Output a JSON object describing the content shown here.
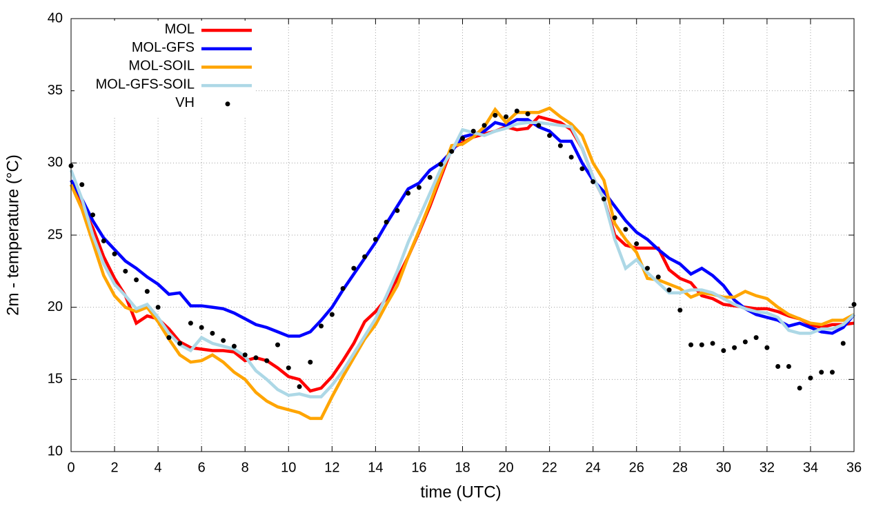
{
  "chart_data": {
    "type": "line",
    "xlabel": "time (UTC)",
    "ylabel": "2m - temperature (°C)",
    "x": [
      0,
      0.5,
      1,
      1.5,
      2,
      2.5,
      3,
      3.5,
      4,
      4.5,
      5,
      5.5,
      6,
      6.5,
      7,
      7.5,
      8,
      8.5,
      9,
      9.5,
      10,
      10.5,
      11,
      11.5,
      12,
      12.5,
      13,
      13.5,
      14,
      14.5,
      15,
      15.5,
      16,
      16.5,
      17,
      17.5,
      18,
      18.5,
      19,
      19.5,
      20,
      20.5,
      21,
      21.5,
      22,
      22.5,
      23,
      23.5,
      24,
      24.5,
      25,
      25.5,
      26,
      26.5,
      27,
      27.5,
      28,
      28.5,
      29,
      29.5,
      30,
      30.5,
      31,
      31.5,
      32,
      32.5,
      33,
      33.5,
      34,
      34.5,
      35,
      35.5,
      36
    ],
    "series": [
      {
        "name": "MOL",
        "color": "#ff0000",
        "values": [
          28.5,
          27,
          25.5,
          23.5,
          22,
          20.8,
          18.9,
          19.4,
          19.2,
          18.5,
          17.6,
          17.2,
          17.1,
          17.0,
          17.0,
          16.9,
          16.3,
          16.5,
          16.3,
          15.8,
          15.2,
          15.0,
          14.2,
          14.4,
          15.2,
          16.3,
          17.5,
          19.0,
          19.7,
          20.6,
          22.0,
          23.5,
          25.2,
          27.0,
          29.0,
          31.0,
          31.4,
          31.8,
          32.0,
          32.2,
          32.5,
          32.3,
          32.4,
          33.2,
          33.0,
          32.8,
          32.3,
          31.0,
          29.0,
          27.5,
          25.0,
          24.3,
          24.1,
          24.1,
          24.1,
          22.6,
          22.0,
          21.7,
          20.8,
          20.6,
          20.2,
          20.1,
          20.0,
          19.9,
          19.9,
          19.7,
          19.4,
          19.2,
          18.8,
          18.6,
          18.8,
          18.8,
          18.9
        ]
      },
      {
        "name": "MOL-GFS",
        "color": "#0000ff",
        "values": [
          28.8,
          27.5,
          26.0,
          24.8,
          24.0,
          23.2,
          22.7,
          22.1,
          21.6,
          20.9,
          21.0,
          20.1,
          20.1,
          20.0,
          19.9,
          19.6,
          19.2,
          18.8,
          18.6,
          18.3,
          18.0,
          18.0,
          18.3,
          19.1,
          20.0,
          21.2,
          22.3,
          23.4,
          24.5,
          25.8,
          27.0,
          28.2,
          28.6,
          29.5,
          30.0,
          30.8,
          31.8,
          32.0,
          32.2,
          32.8,
          32.6,
          33.0,
          33.0,
          32.5,
          32.2,
          31.5,
          31.5,
          30.0,
          28.8,
          28.0,
          27.0,
          26.0,
          25.2,
          24.7,
          24.0,
          23.4,
          23.0,
          22.3,
          22.7,
          22.2,
          21.5,
          20.5,
          19.9,
          19.5,
          19.3,
          19.1,
          18.7,
          18.9,
          18.6,
          18.3,
          18.2,
          18.6,
          19.5
        ]
      },
      {
        "name": "MOL-SOIL",
        "color": "#ffa500",
        "values": [
          28.5,
          26.8,
          24.5,
          22.2,
          20.8,
          20.0,
          19.7,
          20.0,
          19.0,
          17.8,
          16.7,
          16.2,
          16.3,
          16.7,
          16.2,
          15.5,
          15.0,
          14.1,
          13.5,
          13.1,
          12.9,
          12.7,
          12.3,
          12.3,
          13.8,
          15.2,
          16.5,
          17.8,
          18.8,
          20.2,
          21.5,
          23.5,
          25.3,
          27.2,
          29.2,
          31.2,
          31.3,
          31.8,
          32.5,
          33.7,
          32.8,
          33.5,
          33.5,
          33.5,
          33.8,
          33.2,
          32.7,
          31.9,
          30.0,
          28.8,
          25.8,
          24.7,
          23.8,
          22.0,
          21.9,
          21.6,
          21.3,
          20.7,
          21.0,
          20.9,
          20.7,
          20.7,
          21.1,
          20.8,
          20.6,
          20.0,
          19.5,
          19.2,
          18.9,
          18.8,
          19.1,
          19.1,
          19.5
        ]
      },
      {
        "name": "MOL-GFS-SOIL",
        "color": "#add8e6",
        "values": [
          29.5,
          27.5,
          25.0,
          23.0,
          21.6,
          20.8,
          19.9,
          20.2,
          19.3,
          18.2,
          17.4,
          17.0,
          17.9,
          17.5,
          17.3,
          17.1,
          16.6,
          15.6,
          15.0,
          14.3,
          13.9,
          14.0,
          13.8,
          13.8,
          14.6,
          15.6,
          16.8,
          18.0,
          19.2,
          20.8,
          22.5,
          24.5,
          26.2,
          27.9,
          29.6,
          30.8,
          32.3,
          32.1,
          31.9,
          32.2,
          32.4,
          32.7,
          32.8,
          32.8,
          32.7,
          32.6,
          32.5,
          31.0,
          29.0,
          27.5,
          24.7,
          22.7,
          23.3,
          22.4,
          21.7,
          21.0,
          21.0,
          21.2,
          21.2,
          21.0,
          20.6,
          20.2,
          19.9,
          19.7,
          19.6,
          19.3,
          18.4,
          18.2,
          18.2,
          18.5,
          18.5,
          18.8,
          19.5
        ]
      },
      {
        "name": "VH",
        "type": "scatter",
        "color": "#000000",
        "values": [
          29.8,
          28.5,
          26.4,
          24.6,
          23.7,
          22.5,
          21.9,
          21.1,
          20.0,
          17.9,
          17.5,
          18.9,
          18.6,
          18.2,
          17.7,
          17.3,
          16.7,
          16.5,
          16.3,
          17.4,
          15.8,
          14.5,
          16.2,
          18.7,
          19.5,
          21.3,
          22.7,
          23.5,
          24.7,
          25.9,
          26.7,
          27.9,
          28.3,
          29.0,
          29.9,
          30.8,
          31.7,
          32.2,
          32.6,
          33.3,
          33.2,
          33.6,
          33.4,
          32.6,
          31.9,
          31.2,
          30.4,
          29.6,
          28.7,
          27.5,
          26.2,
          25.4,
          24.4,
          22.7,
          22.1,
          21.2,
          19.8,
          17.4,
          17.4,
          17.5,
          17.0,
          17.2,
          17.6,
          17.9,
          17.2,
          15.9,
          15.9,
          14.4,
          15.1,
          15.5,
          15.5,
          17.5,
          20.2
        ]
      }
    ],
    "xlim": [
      0,
      36
    ],
    "xticks": [
      0,
      2,
      4,
      6,
      8,
      10,
      12,
      14,
      16,
      18,
      20,
      22,
      24,
      26,
      28,
      30,
      32,
      34,
      36
    ],
    "ylim": [
      10,
      40
    ],
    "yticks": [
      10,
      15,
      20,
      25,
      30,
      35,
      40
    ],
    "grid": true,
    "legend": "top-left"
  }
}
